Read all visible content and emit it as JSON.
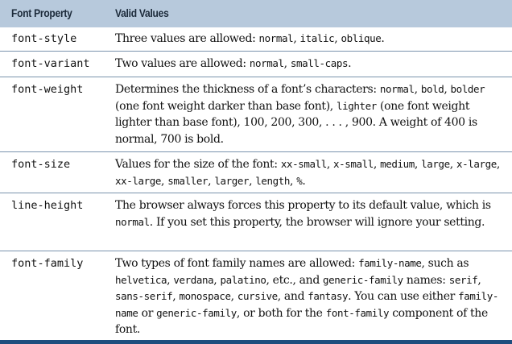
{
  "header": {
    "col_property": "Font Property",
    "col_values": "Valid Values"
  },
  "rows": [
    {
      "property": "font-style",
      "values": [
        {
          "t": "Three values are allowed: "
        },
        {
          "c": "normal"
        },
        {
          "t": ", "
        },
        {
          "c": "italic"
        },
        {
          "t": ", "
        },
        {
          "c": "oblique"
        },
        {
          "t": "."
        }
      ]
    },
    {
      "property": "font-variant",
      "values": [
        {
          "t": "Two values are allowed: "
        },
        {
          "c": "normal"
        },
        {
          "t": ", "
        },
        {
          "c": "small-caps"
        },
        {
          "t": "."
        }
      ]
    },
    {
      "property": "font-weight",
      "values": [
        {
          "t": "Determines the thickness of a font’s characters: "
        },
        {
          "c": "normal"
        },
        {
          "t": ", "
        },
        {
          "c": "bold"
        },
        {
          "t": ", "
        },
        {
          "c": "bolder"
        },
        {
          "t": " (one font weight darker than base font), "
        },
        {
          "c": "lighter"
        },
        {
          "t": " (one font weight lighter than base font), 100, 200, 300, . . . , 900. A weight of 400 is normal, 700 is bold."
        }
      ]
    },
    {
      "property": "font-size",
      "values": [
        {
          "t": "Values for the size of the font: "
        },
        {
          "c": "xx-small"
        },
        {
          "t": ", "
        },
        {
          "c": "x-small"
        },
        {
          "t": ", "
        },
        {
          "c": "medium"
        },
        {
          "t": ", "
        },
        {
          "c": "large"
        },
        {
          "t": ", "
        },
        {
          "c": "x-large"
        },
        {
          "t": ", "
        },
        {
          "c": "xx-large"
        },
        {
          "t": ", "
        },
        {
          "c": "smaller"
        },
        {
          "t": ", "
        },
        {
          "c": "larger"
        },
        {
          "t": ", "
        },
        {
          "c": "length"
        },
        {
          "t": ", "
        },
        {
          "c": "%"
        },
        {
          "t": "."
        }
      ]
    },
    {
      "property": "line-height",
      "values": [
        {
          "t": "The browser always forces this property to its default value, which is "
        },
        {
          "c": "normal"
        },
        {
          "t": ". If you set this property, the browser will ignore your setting."
        }
      ]
    },
    {
      "property": "font-family",
      "values": [
        {
          "t": "Two types of font family names are allowed: "
        },
        {
          "c": "family-name"
        },
        {
          "t": ", such as "
        },
        {
          "c": "helvetica"
        },
        {
          "t": ", "
        },
        {
          "c": "verdana"
        },
        {
          "t": ", "
        },
        {
          "c": "palatino"
        },
        {
          "t": ", etc., and "
        },
        {
          "c": "generic-family"
        },
        {
          "t": " names: "
        },
        {
          "c": "serif"
        },
        {
          "t": ", "
        },
        {
          "c": "sans-serif"
        },
        {
          "t": ", "
        },
        {
          "c": "monospace"
        },
        {
          "t": ", "
        },
        {
          "c": "cursive"
        },
        {
          "t": ", and "
        },
        {
          "c": "fantasy"
        },
        {
          "t": ". You can use either "
        },
        {
          "c": "family-name"
        },
        {
          "t": " or "
        },
        {
          "c": "generic-family"
        },
        {
          "t": ", or both for the "
        },
        {
          "c": "font-family"
        },
        {
          "t": " component of the font."
        }
      ]
    }
  ],
  "colors": {
    "header_bg": "#b7c9dc",
    "rule": "#7a93ad",
    "footer_bar": "#1e4e7e"
  }
}
